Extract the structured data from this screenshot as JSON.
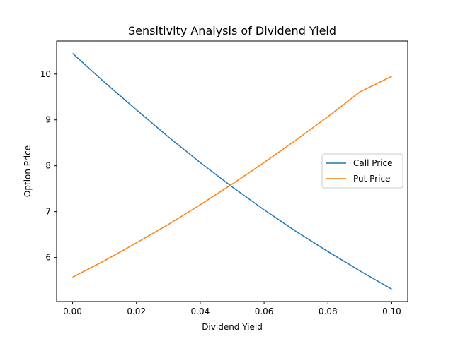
{
  "chart_data": {
    "type": "line",
    "title": "Sensitivity Analysis of Dividend Yield",
    "xlabel": "Dividend Yield",
    "ylabel": "Option Price",
    "xlim": [
      -0.005,
      0.105
    ],
    "ylim": [
      5.04,
      10.72
    ],
    "xticks": [
      0.0,
      0.02,
      0.04,
      0.06,
      0.08,
      0.1
    ],
    "xtick_labels": [
      "0.00",
      "0.02",
      "0.04",
      "0.06",
      "0.08",
      "0.10"
    ],
    "yticks": [
      6,
      7,
      8,
      9,
      10
    ],
    "ytick_labels": [
      "6",
      "7",
      "8",
      "9",
      "10"
    ],
    "grid": false,
    "legend_position": "center-right",
    "x": [
      0.0,
      0.01,
      0.02,
      0.03,
      0.04,
      0.05,
      0.06,
      0.07,
      0.08,
      0.09,
      0.1
    ],
    "series": [
      {
        "name": "Call Price",
        "color": "#1f77b4",
        "values": [
          10.45,
          9.82,
          9.22,
          8.63,
          8.07,
          7.54,
          7.04,
          6.57,
          6.13,
          5.71,
          5.31
        ]
      },
      {
        "name": "Put Price",
        "color": "#ff7f0e",
        "values": [
          5.57,
          5.93,
          6.32,
          6.72,
          7.15,
          7.6,
          8.07,
          8.56,
          9.07,
          9.61,
          9.95
        ]
      }
    ]
  }
}
